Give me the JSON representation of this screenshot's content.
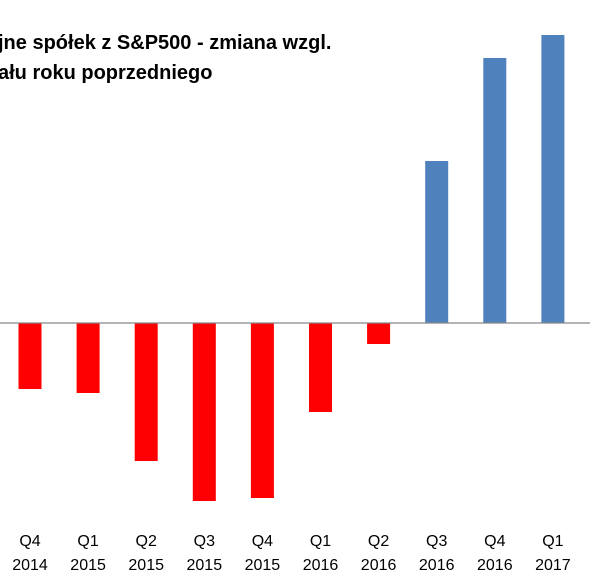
{
  "chart_data": {
    "type": "bar",
    "title_lines": [
      "jne spółek z S&P500 - zmiana wzgl.",
      "ału roku poprzedniego"
    ],
    "categories": [
      [
        "Q4",
        "2014"
      ],
      [
        "Q1",
        "2015"
      ],
      [
        "Q2",
        "2015"
      ],
      [
        "Q3",
        "2015"
      ],
      [
        "Q4",
        "2015"
      ],
      [
        "Q1",
        "2016"
      ],
      [
        "Q2",
        "2016"
      ],
      [
        "Q3",
        "2016"
      ],
      [
        "Q4",
        "2016"
      ],
      [
        "Q1",
        "2017"
      ]
    ],
    "values": [
      -6.6,
      -7.0,
      -13.8,
      -17.8,
      -17.5,
      -8.9,
      -2.1,
      16.2,
      26.5,
      28.8
    ],
    "colors": {
      "positive": "#4f81bd",
      "negative": "#ff0000",
      "axis": "#868686"
    },
    "xlabel": "",
    "ylabel": "",
    "ylim": [
      -18,
      29
    ],
    "grid": false,
    "legend": "none"
  }
}
